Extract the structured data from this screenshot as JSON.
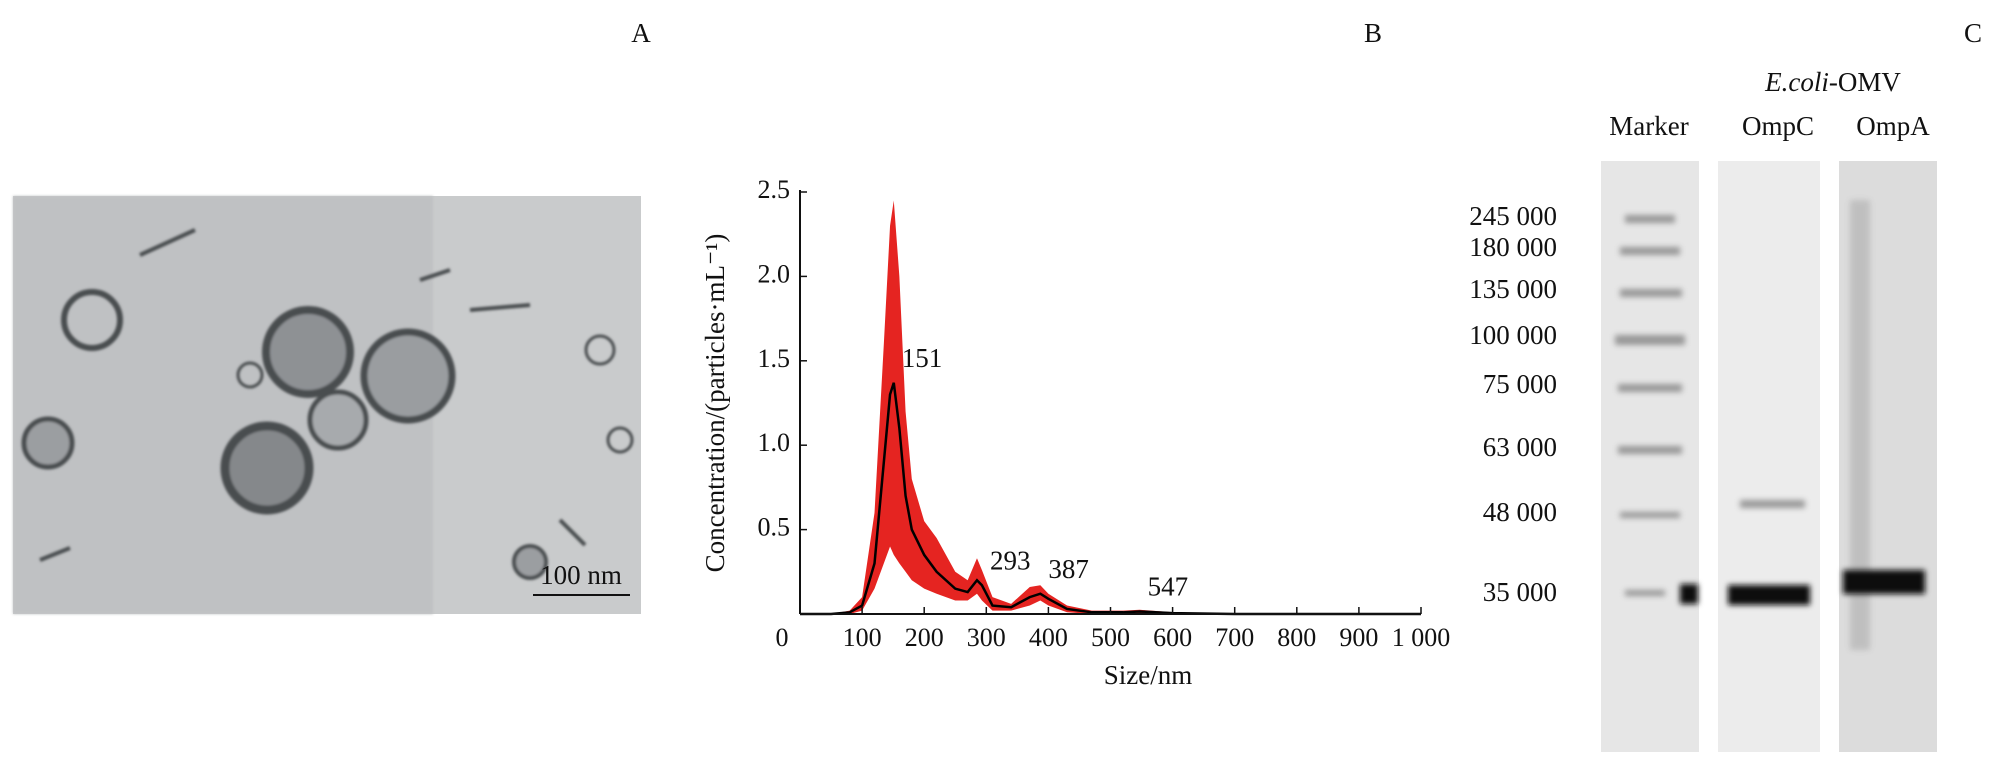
{
  "panels": {
    "a": "A",
    "b": "B",
    "c": "C"
  },
  "tem": {
    "scale_bar": "100 nm"
  },
  "chart_data": {
    "type": "line",
    "x_label": "Size/nm",
    "y_label": "Concentration/(particles·mL⁻¹)",
    "x": [
      0,
      50,
      80,
      100,
      120,
      135,
      145,
      151,
      160,
      170,
      180,
      200,
      220,
      250,
      270,
      285,
      293,
      310,
      340,
      370,
      387,
      400,
      430,
      470,
      520,
      547,
      600,
      700,
      800,
      900,
      1000
    ],
    "series": [
      {
        "color": "#000000",
        "values": [
          0,
          0,
          0.01,
          0.05,
          0.3,
          0.9,
          1.3,
          1.37,
          1.1,
          0.7,
          0.5,
          0.35,
          0.25,
          0.15,
          0.13,
          0.2,
          0.17,
          0.05,
          0.04,
          0.1,
          0.12,
          0.09,
          0.03,
          0.01,
          0.01,
          0.015,
          0.005,
          0,
          0,
          0,
          0
        ]
      }
    ],
    "band": {
      "color": "#e52421",
      "upper": [
        0,
        0,
        0.02,
        0.1,
        0.6,
        1.6,
        2.3,
        2.45,
        2.0,
        1.2,
        0.8,
        0.55,
        0.45,
        0.25,
        0.2,
        0.33,
        0.26,
        0.1,
        0.06,
        0.16,
        0.17,
        0.12,
        0.05,
        0.02,
        0.02,
        0.025,
        0.01,
        0,
        0,
        0,
        0
      ],
      "lower": [
        0,
        0,
        0,
        0.02,
        0.15,
        0.3,
        0.4,
        0.35,
        0.3,
        0.25,
        0.2,
        0.15,
        0.12,
        0.08,
        0.08,
        0.12,
        0.08,
        0.02,
        0.02,
        0.05,
        0.08,
        0.05,
        0.01,
        0,
        0,
        0.005,
        0,
        0,
        0,
        0,
        0
      ]
    },
    "annotations": [
      151,
      293,
      387,
      547
    ],
    "xlim": [
      0,
      1000
    ],
    "ylim": [
      0,
      2.5
    ],
    "xticks": [
      0,
      100,
      200,
      300,
      400,
      500,
      600,
      700,
      800,
      900,
      {
        "value": 1000,
        "label": "1 000"
      }
    ],
    "yticks": [
      0.5,
      {
        "value": 1,
        "label": "1.0"
      },
      1.5,
      {
        "value": 2,
        "label": "2.0"
      },
      2.5
    ]
  },
  "blot": {
    "group_label": {
      "italic": "E.coli",
      "normal": "-OMV"
    },
    "lanes": [
      "Marker",
      "OmpC",
      "OmpA"
    ],
    "markers": [
      "245 000",
      "180 000",
      "135 000",
      "100 000",
      "75 000",
      "63 000",
      "48 000",
      "35 000"
    ]
  }
}
